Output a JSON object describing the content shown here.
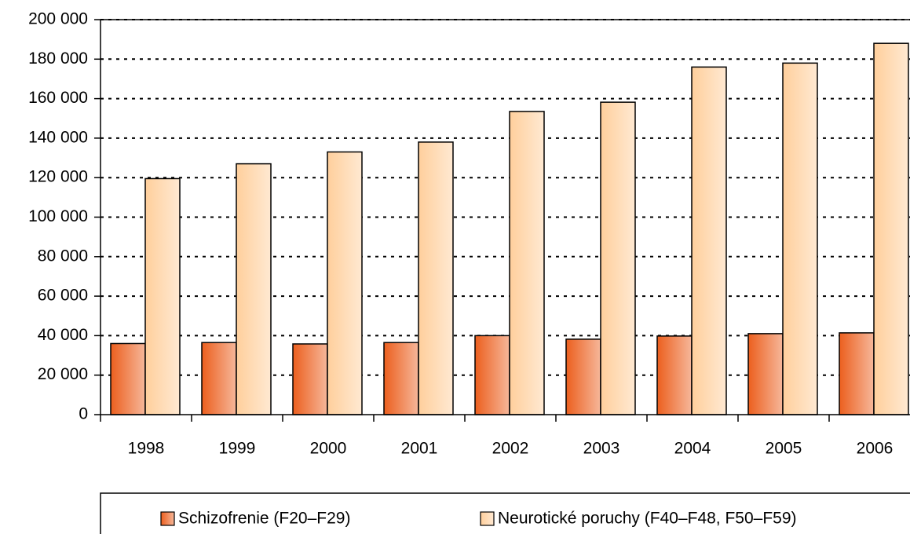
{
  "chart_data": {
    "type": "bar",
    "categories": [
      "1998",
      "1999",
      "2000",
      "2001",
      "2002",
      "2003",
      "2004",
      "2005",
      "2006"
    ],
    "series": [
      {
        "name": "Schizofrenie (F20–F29)",
        "color": "#ec5f1e",
        "values": [
          36000,
          36500,
          35800,
          36500,
          40000,
          38200,
          39800,
          41000,
          41400
        ]
      },
      {
        "name": "Neurotické poruchy (F40–F48, F50–F59)",
        "color": "#ffcf9c",
        "values": [
          119500,
          127000,
          133000,
          138000,
          153500,
          158200,
          176000,
          178000,
          188000
        ]
      }
    ],
    "ylim": [
      0,
      200000
    ],
    "yticks": [
      0,
      {
        "value": 20000,
        "label": "20 000"
      },
      {
        "value": 40000,
        "label": "40 000"
      },
      {
        "value": 60000,
        "label": "60 000"
      },
      {
        "value": 80000,
        "label": "80 000"
      },
      {
        "value": 100000,
        "label": "100 000"
      },
      {
        "value": 120000,
        "label": "120 000"
      },
      {
        "value": 140000,
        "label": "140 000"
      },
      {
        "value": 160000,
        "label": "160 000"
      },
      {
        "value": 180000,
        "label": "180 000"
      },
      {
        "value": 200000,
        "label": "200 000"
      }
    ],
    "grid": true,
    "legend": "bottom"
  }
}
